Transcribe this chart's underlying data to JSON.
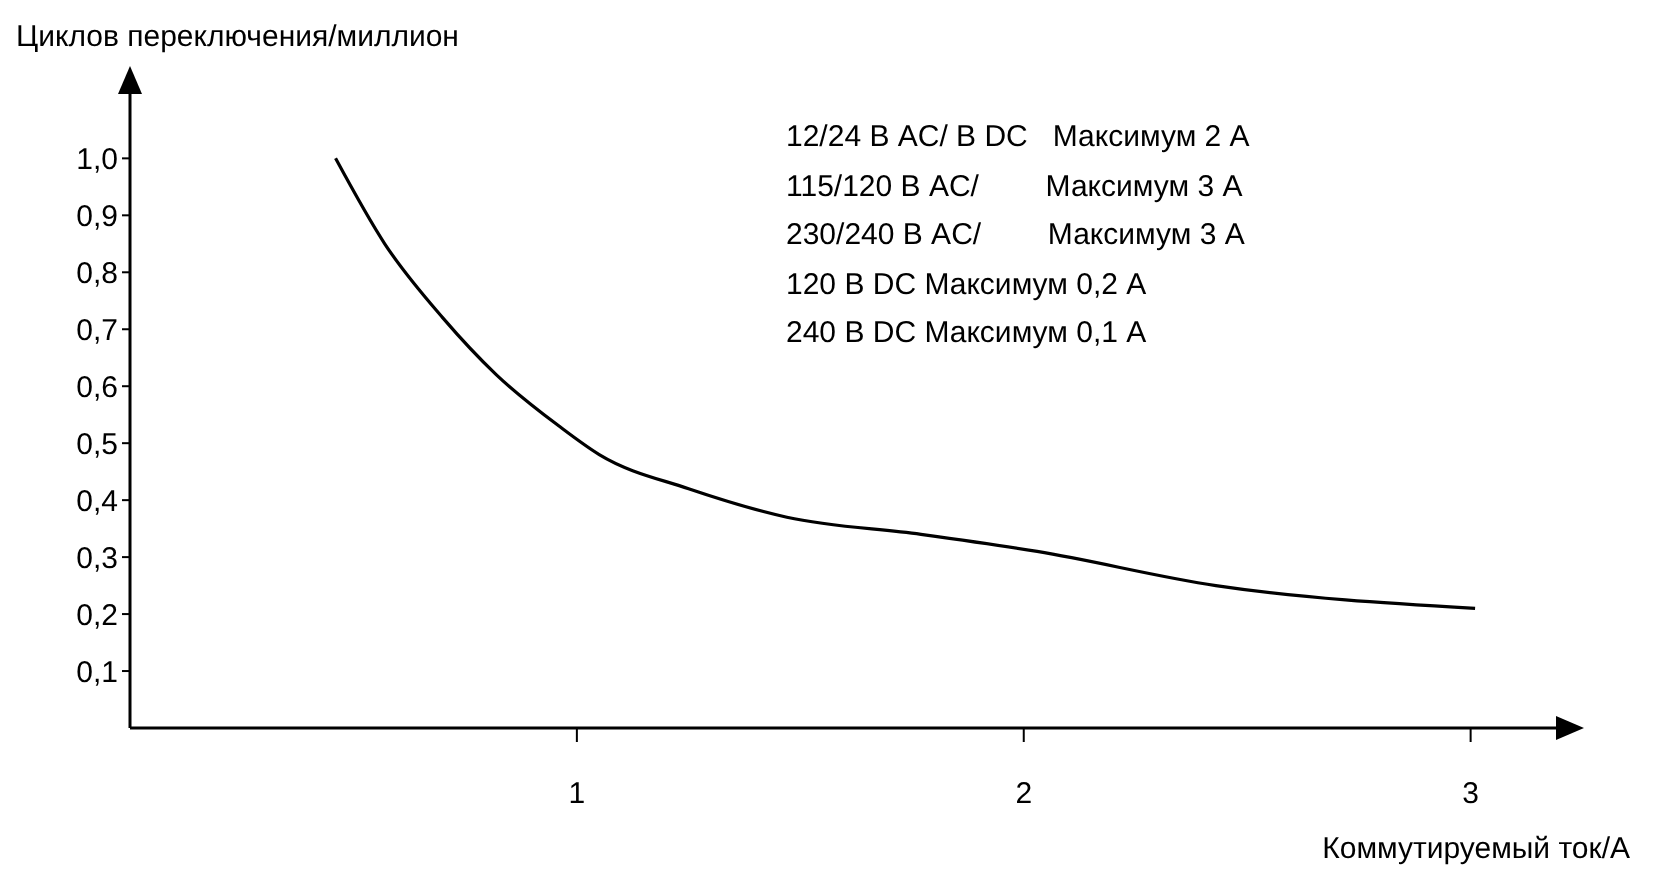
{
  "chart_data": {
    "type": "line",
    "xlabel": "Коммутируемый ток/А",
    "ylabel": "Циклов переключения/миллион",
    "annotations": [
      "12/24 В AC/ В DC   Максимум 2 А",
      "115/120 В AC/        Максимум 3 А",
      "230/240 В AC/        Максимум 3 А",
      "120 В DC Максимум 0,2 А",
      "240 В DC Максимум 0,1 А"
    ],
    "x": [
      0.46,
      0.57,
      0.7,
      0.82,
      0.96,
      1.05,
      1.25,
      1.47,
      1.77,
      2.03,
      2.43,
      3.01
    ],
    "series": [
      {
        "color": "#000000",
        "values": [
          1.0,
          0.85,
          0.72,
          0.62,
          0.53,
          0.48,
          0.42,
          0.37,
          0.34,
          0.31,
          0.25,
          0.21
        ]
      }
    ],
    "xlim": [
      0,
      3.2
    ],
    "ylim": [
      0,
      1.12
    ],
    "xticks": [
      1,
      2,
      3
    ],
    "yticks": [
      {
        "value": 0.1,
        "label": "0,1"
      },
      {
        "value": 0.2,
        "label": "0,2"
      },
      {
        "value": 0.3,
        "label": "0,3"
      },
      {
        "value": 0.4,
        "label": "0,4"
      },
      {
        "value": 0.5,
        "label": "0,5"
      },
      {
        "value": 0.6,
        "label": "0,6"
      },
      {
        "value": 0.7,
        "label": "0,7"
      },
      {
        "value": 0.8,
        "label": "0,8"
      },
      {
        "value": 0.9,
        "label": "0,9"
      },
      {
        "value": 1.0,
        "label": "1,0"
      }
    ],
    "marker": "none",
    "line_style": "solid"
  }
}
